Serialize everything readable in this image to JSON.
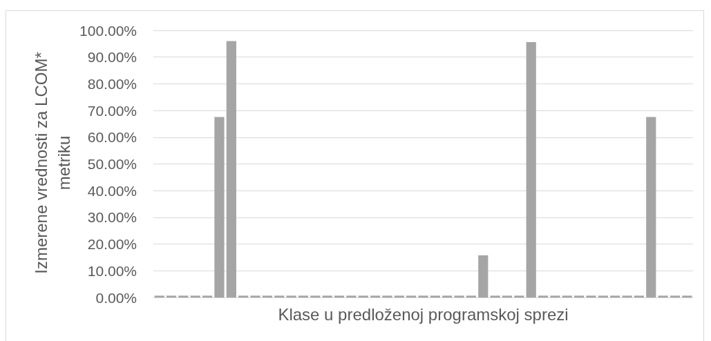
{
  "chart_data": {
    "type": "bar",
    "xlabel": "Klase u predloženoj programskoj sprezi",
    "ylabel": "Izmerene vrednosti za LCOM* metriku",
    "categories": [
      null,
      null,
      null,
      null,
      null,
      null,
      null,
      null,
      null,
      null,
      null,
      null,
      null,
      null,
      null,
      null,
      null,
      null,
      null,
      null,
      null,
      null,
      null,
      null,
      null,
      null,
      null,
      null,
      null,
      null,
      null,
      null,
      null,
      null,
      null,
      null,
      null,
      null,
      null,
      null,
      null,
      null,
      null,
      null,
      null
    ],
    "values": [
      0.7,
      0.7,
      0.7,
      0.7,
      0.7,
      67.6,
      96,
      0.7,
      0.7,
      0.7,
      0.7,
      0.7,
      0.7,
      0.7,
      0.7,
      0.7,
      0.7,
      0.7,
      0.7,
      0.7,
      0.7,
      0.7,
      0.7,
      0.7,
      0.7,
      0.7,
      0.7,
      15.8,
      0.7,
      0.7,
      0.7,
      95.6,
      0.7,
      0.7,
      0.7,
      0.7,
      0.7,
      0.7,
      0.7,
      0.7,
      0.7,
      67.6,
      0.7,
      0.7,
      0.7
    ],
    "color": "#a5a5a5",
    "ylim": [
      0,
      100
    ],
    "yticks": [
      {
        "value": 0,
        "label": "0.00%"
      },
      {
        "value": 10,
        "label": "10.00%"
      },
      {
        "value": 20,
        "label": "20.00%"
      },
      {
        "value": 30,
        "label": "30.00%"
      },
      {
        "value": 40,
        "label": "40.00%"
      },
      {
        "value": 50,
        "label": "50.00%"
      },
      {
        "value": 60,
        "label": "60.00%"
      },
      {
        "value": 70,
        "label": "70.00%"
      },
      {
        "value": 80,
        "label": "80.00%"
      },
      {
        "value": 90,
        "label": "90.00%"
      },
      {
        "value": 100,
        "label": "100.00%"
      }
    ],
    "grid": "y"
  }
}
